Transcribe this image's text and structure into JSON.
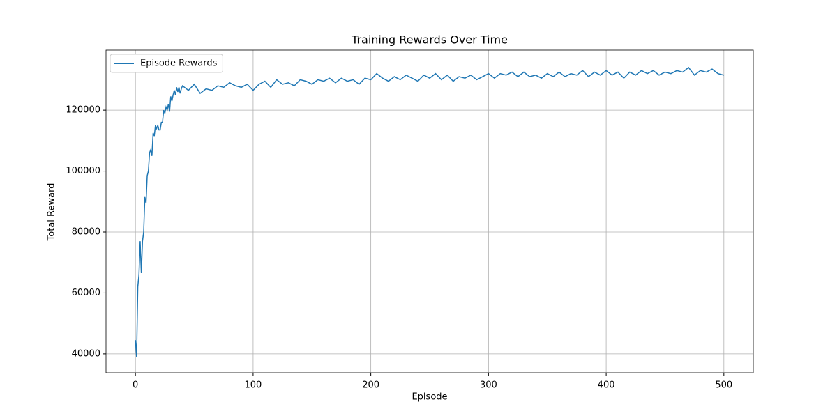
{
  "chart_data": {
    "type": "line",
    "title": "Training Rewards Over Time",
    "x_label": "Episode",
    "y_label": "Total Reward",
    "x": [
      0,
      1,
      2,
      3,
      4,
      5,
      6,
      7,
      8,
      9,
      10,
      11,
      12,
      13,
      14,
      15,
      16,
      17,
      18,
      19,
      20,
      21,
      22,
      23,
      24,
      25,
      26,
      27,
      28,
      29,
      30,
      31,
      32,
      33,
      34,
      35,
      36,
      37,
      38,
      39,
      40,
      45,
      50,
      55,
      60,
      65,
      70,
      75,
      80,
      85,
      90,
      95,
      100,
      105,
      110,
      115,
      120,
      125,
      130,
      135,
      140,
      145,
      150,
      155,
      160,
      165,
      170,
      175,
      180,
      185,
      190,
      195,
      200,
      205,
      210,
      215,
      220,
      225,
      230,
      235,
      240,
      245,
      250,
      255,
      260,
      265,
      270,
      275,
      280,
      285,
      290,
      295,
      300,
      305,
      310,
      315,
      320,
      325,
      330,
      335,
      340,
      345,
      350,
      355,
      360,
      365,
      370,
      375,
      380,
      385,
      390,
      395,
      400,
      405,
      410,
      415,
      420,
      425,
      430,
      435,
      440,
      445,
      450,
      455,
      460,
      465,
      470,
      475,
      480,
      485,
      490,
      495,
      500
    ],
    "series": [
      {
        "name": "Episode Rewards",
        "color": "#1f77b4",
        "values": [
          44500,
          39000,
          62000,
          66000,
          77000,
          66500,
          77000,
          80000,
          91500,
          89500,
          98500,
          100000,
          106000,
          107000,
          105000,
          112500,
          111500,
          115000,
          114000,
          115000,
          113500,
          113500,
          116000,
          116000,
          120000,
          119000,
          121000,
          120000,
          122000,
          119500,
          124500,
          123000,
          125000,
          126500,
          125000,
          127500,
          126000,
          127500,
          125500,
          127000,
          128000,
          126500,
          128500,
          125500,
          127000,
          126500,
          128000,
          127500,
          129000,
          128000,
          127500,
          128500,
          126500,
          128500,
          129500,
          127500,
          130000,
          128500,
          129000,
          128000,
          130000,
          129500,
          128500,
          130000,
          129500,
          130500,
          129000,
          130500,
          129500,
          130000,
          128500,
          130500,
          130000,
          132000,
          130500,
          129500,
          131000,
          130000,
          131500,
          130500,
          129500,
          131500,
          130500,
          132000,
          130000,
          131500,
          129500,
          131000,
          130500,
          131500,
          130000,
          131000,
          132000,
          130500,
          132000,
          131500,
          132500,
          131000,
          132500,
          131000,
          131500,
          130500,
          132000,
          131000,
          132500,
          131000,
          132000,
          131500,
          133000,
          131000,
          132500,
          131500,
          133000,
          131500,
          132500,
          130500,
          132500,
          131500,
          133000,
          132000,
          133000,
          131500,
          132500,
          132000,
          133000,
          132500,
          134000,
          131500,
          133000,
          132500,
          133500,
          132000,
          131500
        ]
      }
    ],
    "xlim": [
      -25,
      525
    ],
    "ylim": [
      33800,
      139700
    ],
    "xticks": [
      0,
      100,
      200,
      300,
      400,
      500
    ],
    "yticks": [
      40000,
      60000,
      80000,
      100000,
      120000
    ],
    "grid": true,
    "legend": "upper left"
  }
}
